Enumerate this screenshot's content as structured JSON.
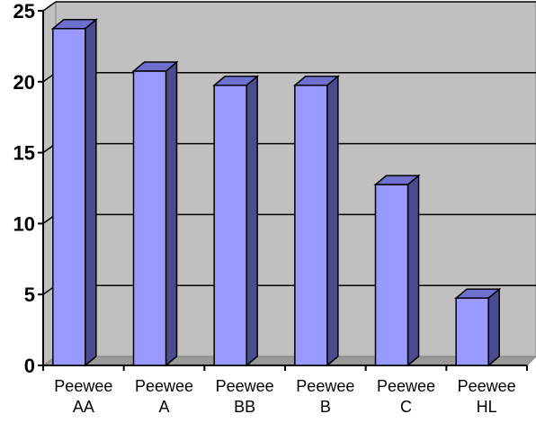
{
  "chart_data": {
    "type": "bar",
    "title": "",
    "xlabel": "",
    "ylabel": "",
    "categories": [
      "Peewee AA",
      "Peewee A",
      "Peewee BB",
      "Peewee B",
      "Peewee C",
      "Peewee HL"
    ],
    "category_lines": [
      [
        "Peewee",
        "AA"
      ],
      [
        "Peewee",
        "A"
      ],
      [
        "Peewee",
        "BB"
      ],
      [
        "Peewee",
        "B"
      ],
      [
        "Peewee",
        "C"
      ],
      [
        "Peewee",
        "HL"
      ]
    ],
    "values": [
      24,
      21,
      20,
      20,
      13,
      5
    ],
    "ylim": [
      0,
      25
    ],
    "yticks": [
      "0",
      "5",
      "10",
      "15",
      "20",
      "25"
    ],
    "grid": true,
    "legend": "none",
    "style": "3d",
    "colors": {
      "bar_front": "#9999ff",
      "bar_side": "#4b4b8f",
      "bar_top": "#6f6fd0",
      "wall": "#c0c0c0",
      "floor": "#999999",
      "grid": "#000000"
    }
  }
}
